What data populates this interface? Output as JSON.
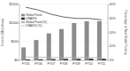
{
  "chart_data": {
    "type": "bar",
    "categories": [
      "FY05",
      "FY06",
      "FY07",
      "FY08",
      "FY09",
      "FY10",
      "FY11"
    ],
    "y_label": "Current US$ (millions)",
    "y2_label": "Percentage of Total Global Funding",
    "ylim": [
      0,
      1500
    ],
    "yticks": [
      {
        "value": 0,
        "label": "$0"
      },
      {
        "value": 500,
        "label": "$500"
      },
      {
        "value": 1000,
        "label": "$1000"
      },
      {
        "value": 1500,
        "label": "$1500"
      }
    ],
    "y2lim": [
      0,
      40
    ],
    "y2ticks": [
      {
        "value": 0,
        "label": "0%"
      },
      {
        "value": 10,
        "label": "10%"
      },
      {
        "value": 20,
        "label": "20%"
      },
      {
        "value": 30,
        "label": "30%"
      },
      {
        "value": 40,
        "label": "40%"
      }
    ],
    "legend": "upper left",
    "series": [
      {
        "name": "Global Fund",
        "type": "bar",
        "color": "#8c8c8c",
        "values": [
          347,
          545,
          724,
          840,
          1000,
          1050,
          1050
        ]
      },
      {
        "name": "UNAIDS",
        "type": "bar",
        "color": "#333333",
        "values": [
          27,
          30,
          35,
          40,
          40,
          45,
          43
        ]
      },
      {
        "name": "Global Fund (%)",
        "type": "line",
        "axis": "y2",
        "color": "#404040",
        "values": [
          38,
          36,
          33,
          31,
          30,
          30,
          29
        ]
      },
      {
        "name": "UNAIDS (%)",
        "type": "line",
        "axis": "y2",
        "color": "#b0b0b0",
        "values": [
          2.4,
          2.2,
          2.1,
          2,
          2,
          2.1,
          1.9
        ]
      }
    ]
  }
}
